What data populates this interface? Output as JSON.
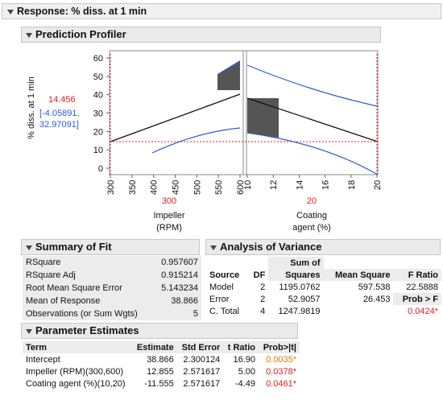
{
  "report_title": "Response: % diss. at 1 min",
  "profiler": {
    "title": "Prediction Profiler",
    "y_label": "% diss. at 1 min",
    "y_value": "14.456",
    "y_ci": "[-4.05891, 32.97091]",
    "y_ticks": [
      "0",
      "10",
      "20",
      "30",
      "40",
      "50",
      "60"
    ],
    "impeller": {
      "ticks": [
        "300",
        "350",
        "400",
        "450",
        "500",
        "550",
        "600"
      ],
      "current": "300",
      "label_line1": "Impeller",
      "label_line2": "(RPM)"
    },
    "coating": {
      "ticks": [
        "10",
        "12",
        "14",
        "16",
        "18",
        "20"
      ],
      "current": "20",
      "label_line1": "Coating",
      "label_line2": "agent (%)"
    },
    "colors": {
      "line": "#111111",
      "ci": "#2a5bd7",
      "ref": "#e02020",
      "box": "#555555"
    }
  },
  "summary_of_fit": {
    "title": "Summary of Fit",
    "rows": [
      {
        "label": "RSquare",
        "value": "0.957607"
      },
      {
        "label": "RSquare Adj",
        "value": "0.915214"
      },
      {
        "label": "Root Mean Square Error",
        "value": "5.143234"
      },
      {
        "label": "Mean of Response",
        "value": "38.866"
      },
      {
        "label": "Observations (or Sum Wgts)",
        "value": "5"
      }
    ]
  },
  "anova": {
    "title": "Analysis of Variance",
    "headers": {
      "source": "Source",
      "df": "DF",
      "ss1": "Sum of",
      "ss2": "Squares",
      "ms": "Mean Square",
      "f": "F Ratio",
      "prob": "Prob > F"
    },
    "rows": [
      {
        "source": "Model",
        "df": "2",
        "ss": "1195.0762",
        "ms": "597.538",
        "f": "22.5888"
      },
      {
        "source": "Error",
        "df": "2",
        "ss": "52.9057",
        "ms": "26.453",
        "f": ""
      },
      {
        "source": "C. Total",
        "df": "4",
        "ss": "1247.9819",
        "ms": "",
        "f": ""
      }
    ],
    "prob_value": "0.0424*"
  },
  "parameter_estimates": {
    "title": "Parameter Estimates",
    "headers": {
      "term": "Term",
      "estimate": "Estimate",
      "se": "Std Error",
      "t": "t Ratio",
      "p": "Prob>|t|"
    },
    "rows": [
      {
        "term": "Intercept",
        "estimate": "38.866",
        "se": "2.300124",
        "t": "16.90",
        "p": "0.0035*"
      },
      {
        "term": "Impeller (RPM)(300,600)",
        "estimate": "12.855",
        "se": "2.571617",
        "t": "5.00",
        "p": "0.0378*"
      },
      {
        "term": "Coating agent (%)(10,20)",
        "estimate": "-11.555",
        "se": "2.571617",
        "t": "-4.49",
        "p": "0.0461*"
      }
    ]
  }
}
